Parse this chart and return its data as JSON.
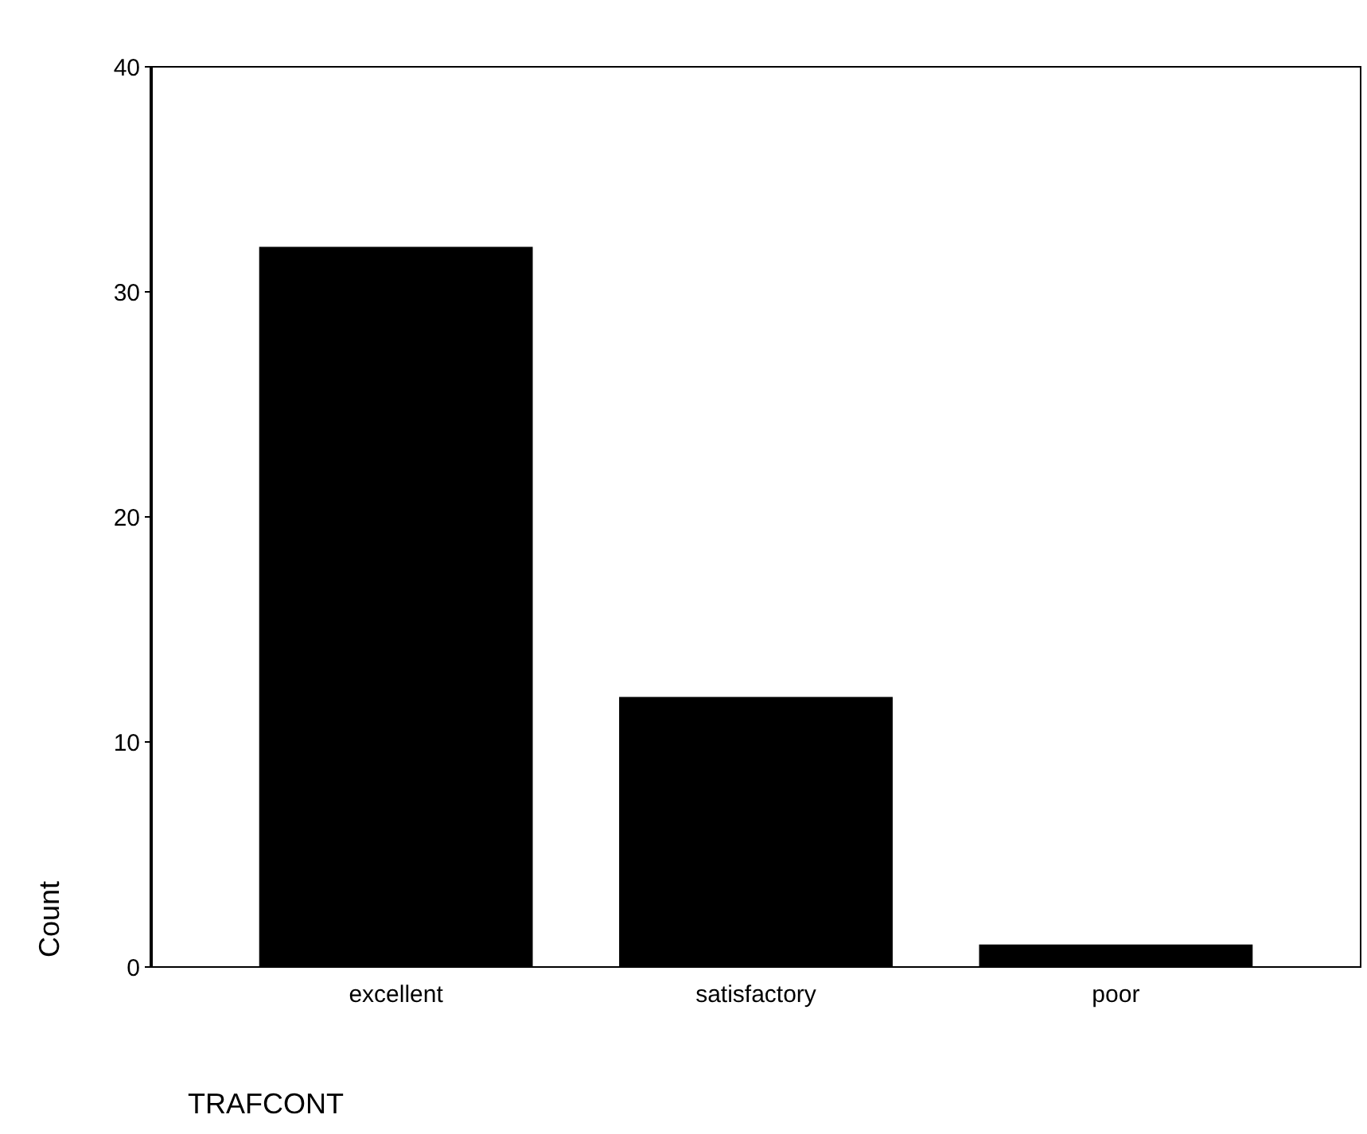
{
  "chart_data": {
    "type": "bar",
    "xlabel": "TRAFCONT",
    "ylabel": "Count",
    "categories": [
      "excellent",
      "satisfactory",
      "poor"
    ],
    "values": [
      32,
      12,
      1
    ],
    "color": "#000000",
    "ylim": [
      0,
      40
    ],
    "yticks": [
      0,
      10,
      20,
      30,
      40
    ],
    "grid": false
  }
}
